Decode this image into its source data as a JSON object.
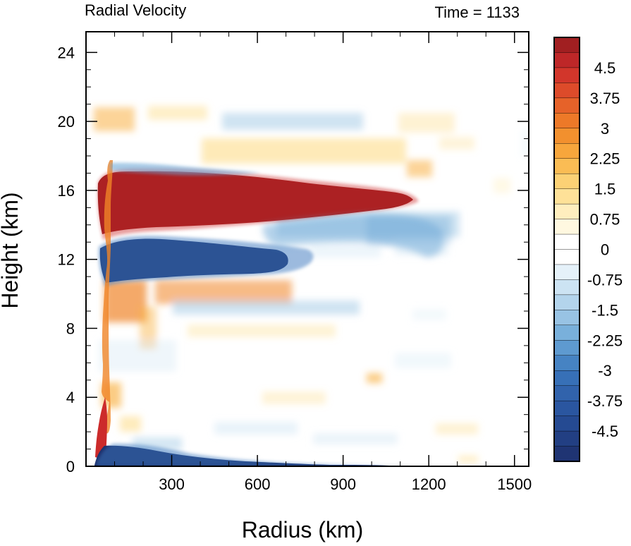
{
  "chart_data": {
    "type": "heatmap",
    "title": "Radial Velocity",
    "time_label": "Time = 1133",
    "xlabel": "Radius (km)",
    "ylabel": "Height (km)",
    "xlim": [
      0,
      1550
    ],
    "ylim": [
      0,
      25.2
    ],
    "x_ticks": [
      300,
      600,
      900,
      1200,
      1500
    ],
    "y_ticks": [
      0,
      4,
      8,
      12,
      16,
      20,
      24
    ],
    "x_tick_labels": [
      "300",
      "600",
      "900",
      "1200",
      "1500"
    ],
    "y_tick_labels": [
      "0",
      "4",
      "8",
      "12",
      "16",
      "20",
      "24"
    ],
    "colorbar": {
      "min": -5.25,
      "max": 5.25,
      "step": 0.375,
      "labels": [
        "4.5",
        "3.75",
        "3",
        "2.25",
        "1.5",
        "0.75",
        "0",
        "-0.75",
        "-1.5",
        "-2.25",
        "-3",
        "-3.75",
        "-4.5"
      ],
      "label_values": [
        4.5,
        3.75,
        3,
        2.25,
        1.5,
        0.75,
        0,
        -0.75,
        -1.5,
        -2.25,
        -3,
        -3.75,
        -4.5
      ],
      "color_stops": [
        {
          "v": -5.25,
          "c": "#1d2f6b"
        },
        {
          "v": -4.125,
          "c": "#274f9a"
        },
        {
          "v": -3.0,
          "c": "#3a77bd"
        },
        {
          "v": -2.25,
          "c": "#6aa6d6"
        },
        {
          "v": -1.5,
          "c": "#a7cde8"
        },
        {
          "v": -0.75,
          "c": "#d8eaf6"
        },
        {
          "v": -0.1875,
          "c": "#ffffff"
        },
        {
          "v": 0.1875,
          "c": "#ffffff"
        },
        {
          "v": 0.75,
          "c": "#fff4d1"
        },
        {
          "v": 1.5,
          "c": "#fddb85"
        },
        {
          "v": 2.25,
          "c": "#f9b143"
        },
        {
          "v": 3.0,
          "c": "#f08527"
        },
        {
          "v": 3.75,
          "c": "#e2562a"
        },
        {
          "v": 4.5,
          "c": "#cc2b2b"
        },
        {
          "v": 5.25,
          "c": "#931b1e"
        }
      ]
    },
    "features": [
      {
        "name": "upper-level outflow",
        "sign": "positive",
        "radius_km": [
          60,
          1150
        ],
        "height_km": [
          14.0,
          17.2
        ],
        "peak": 5.25
      },
      {
        "name": "mid-upper inflow",
        "sign": "negative",
        "radius_km": [
          60,
          750
        ],
        "height_km": [
          11.0,
          13.5
        ],
        "peak": -5.25
      },
      {
        "name": "weak upper inflow",
        "sign": "negative",
        "radius_km": [
          750,
          1260
        ],
        "height_km": [
          12.5,
          15.0
        ],
        "peak": -2.0
      },
      {
        "name": "boundary-layer inflow",
        "sign": "negative",
        "radius_km": [
          40,
          950
        ],
        "height_km": [
          0,
          1.4
        ],
        "peak": -5.25
      },
      {
        "name": "eyewall outflow",
        "sign": "positive",
        "radius_km": [
          40,
          80
        ],
        "height_km": [
          0.3,
          3.8
        ],
        "peak": 5.25
      },
      {
        "name": "mid-level outflow",
        "sign": "positive",
        "radius_km": [
          120,
          700
        ],
        "height_km": [
          8.5,
          10.8
        ],
        "peak": 3.0
      },
      {
        "name": "tropopause band",
        "sign": "mixed",
        "radius_km": [
          50,
          1500
        ],
        "height_km": [
          17.0,
          21.0
        ],
        "peak": 1.5
      }
    ]
  }
}
